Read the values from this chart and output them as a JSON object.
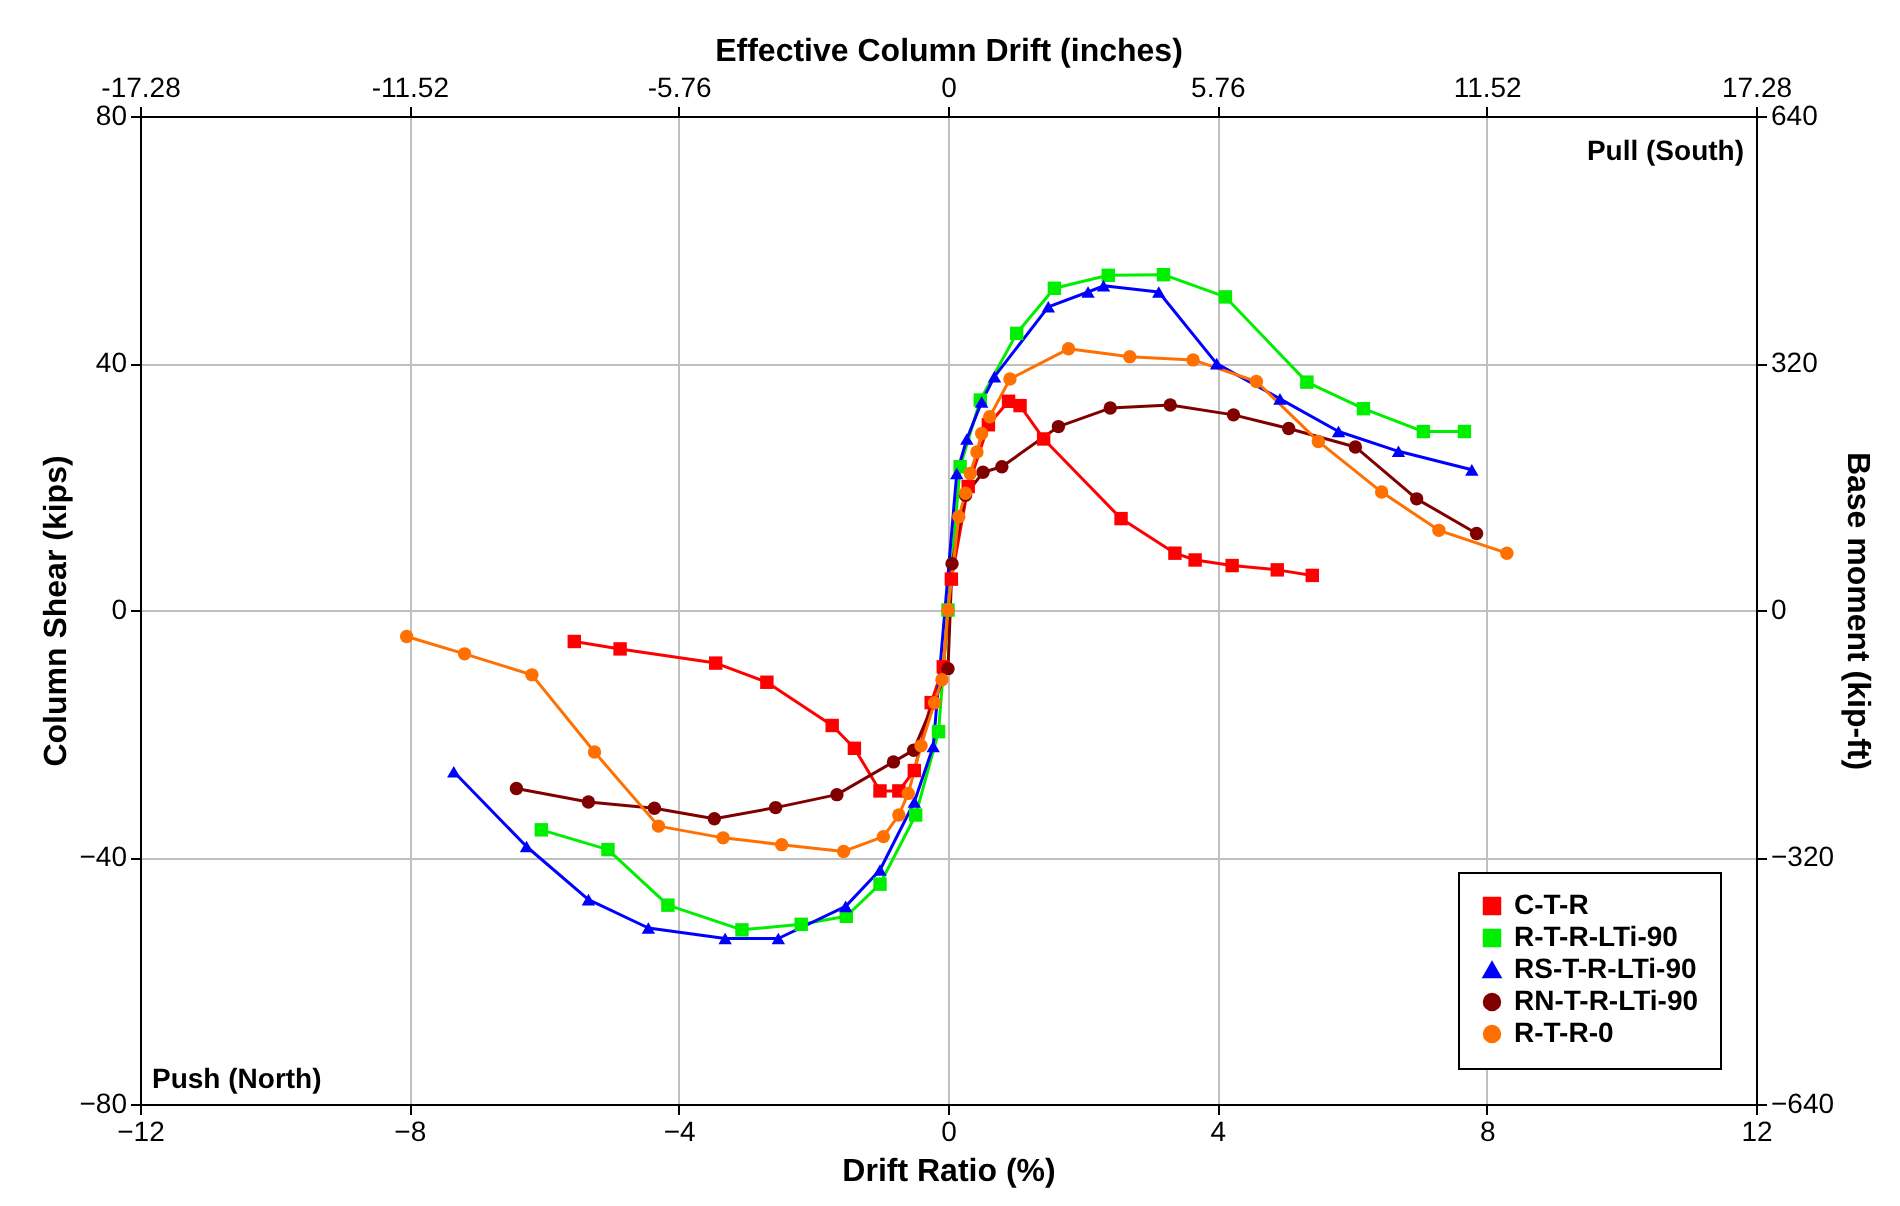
{
  "chart_data": {
    "type": "line",
    "xlabel": "Drift Ratio (%)",
    "ylabel": "Column Shear (kips)",
    "x2label": "Effective Column Drift (inches)",
    "y2label": "Base moment (kip-ft)",
    "xlim": [
      -12,
      12
    ],
    "xticks": [
      -12,
      -8,
      -4,
      0,
      4,
      8,
      12
    ],
    "ylim": [
      -80,
      80
    ],
    "yticks": [
      -80,
      -40,
      0,
      40,
      80
    ],
    "x2lim": [
      -17.28,
      17.28
    ],
    "x2ticks": [
      {
        "value": -17.28,
        "label": "-17.28"
      },
      {
        "value": -11.52,
        "label": "-11.52"
      },
      {
        "value": -5.76,
        "label": "-5.76"
      },
      0,
      {
        "value": 5.76,
        "label": "5.76"
      },
      {
        "value": 11.52,
        "label": "11.52"
      },
      {
        "value": 17.28,
        "label": "17.28"
      }
    ],
    "y2lim": [
      -640,
      640
    ],
    "y2ticks": [
      -640,
      -320,
      0,
      320,
      640
    ],
    "grid": true,
    "legend": "bottom right",
    "annotations": [
      "Pull (South)",
      "Push (North)"
    ],
    "series": [
      {
        "name": "C-T-R",
        "color": "#ff0000",
        "marker": "square",
        "x": [
          -5.55,
          -4.87,
          -3.45,
          -2.69,
          -1.72,
          -1.39,
          -1.01,
          -0.73,
          -0.5,
          -0.25,
          -0.07,
          0.05,
          0.3,
          0.6,
          0.9,
          1.07,
          1.42,
          2.57,
          3.37,
          3.67,
          4.22,
          4.89,
          5.41
        ],
        "values": [
          -5.1,
          -6.3,
          -8.6,
          -11.7,
          -18.7,
          -22.4,
          -29.3,
          -29.3,
          -26,
          -15,
          -9.2,
          5,
          20,
          30,
          33.8,
          33.1,
          27.7,
          14.8,
          9.2,
          8.1,
          7.2,
          6.5,
          5.6
        ]
      },
      {
        "name": "R-T-R-LTi-90",
        "color": "#00ee00",
        "marker": "square",
        "x": [
          -6.04,
          -5.05,
          -4.16,
          -3.06,
          -2.18,
          -1.51,
          -1.01,
          -0.48,
          -0.14,
          0,
          0.18,
          0.48,
          1.02,
          1.58,
          2.38,
          3.2,
          4.12,
          5.33,
          6.17,
          7.06,
          7.67
        ],
        "values": [
          -35.6,
          -38.8,
          -47.8,
          -51.8,
          -50.9,
          -49.6,
          -44.4,
          -33.2,
          -19.7,
          0,
          23.2,
          34,
          44.8,
          52.1,
          54.2,
          54.3,
          50.7,
          36.9,
          32.6,
          28.9,
          28.9
        ]
      },
      {
        "name": "RS-T-R-LTi-90",
        "color": "#0000ff",
        "marker": "triangle",
        "x": [
          -7.34,
          -6.26,
          -5.34,
          -4.45,
          -3.31,
          -2.52,
          -1.52,
          -1.01,
          -0.5,
          -0.22,
          0.13,
          0.28,
          0.5,
          0.69,
          1.49,
          2.08,
          2.31,
          3.13,
          3.99,
          4.93,
          5.8,
          6.69,
          7.78
        ],
        "values": [
          -26.2,
          -38.3,
          -46.9,
          -51.5,
          -53.2,
          -53.2,
          -48,
          -42.1,
          -31.1,
          -22.1,
          22.1,
          27.7,
          33.7,
          37.8,
          49.1,
          51.5,
          52.5,
          51.5,
          39.9,
          34.2,
          28.9,
          25.7,
          22.7
        ]
      },
      {
        "name": "RN-T-R-LTi-90",
        "color": "#800000",
        "marker": "circle",
        "x": [
          -6.41,
          -5.34,
          -4.36,
          -3.47,
          -2.56,
          -1.65,
          -0.81,
          -0.51,
          0,
          0.06,
          0.26,
          0.52,
          0.8,
          1.64,
          2.41,
          3.3,
          4.24,
          5.06,
          6.05,
          6.96,
          7.85
        ],
        "values": [
          -28.9,
          -31.1,
          -32.1,
          -33.8,
          -32,
          -29.9,
          -24.6,
          -22.7,
          -9.5,
          7.5,
          18.6,
          22.3,
          23.2,
          29.7,
          32.7,
          33.2,
          31.6,
          29.4,
          26.4,
          18,
          12.4
        ]
      },
      {
        "name": "R-T-R-0",
        "color": "#ff7000",
        "marker": "circle",
        "x": [
          -8.04,
          -7.18,
          -6.18,
          -5.25,
          -4.3,
          -3.34,
          -2.47,
          -1.55,
          -0.96,
          -0.73,
          -0.59,
          -0.4,
          -0.2,
          -0.09,
          0,
          0.16,
          0.26,
          0.33,
          0.43,
          0.5,
          0.62,
          0.92,
          1.79,
          2.7,
          3.64,
          4.58,
          5.5,
          6.44,
          7.29,
          8.3
        ],
        "values": [
          -4.3,
          -7.1,
          -10.5,
          -23,
          -35,
          -36.9,
          -38,
          -39.1,
          -36.7,
          -33.2,
          -29.7,
          -22,
          -15,
          -11.3,
          0,
          15.1,
          18.9,
          22.1,
          25.6,
          28.6,
          31.3,
          37.4,
          42.3,
          41,
          40.5,
          37,
          27.3,
          19.1,
          12.9,
          9.2
        ]
      }
    ]
  }
}
